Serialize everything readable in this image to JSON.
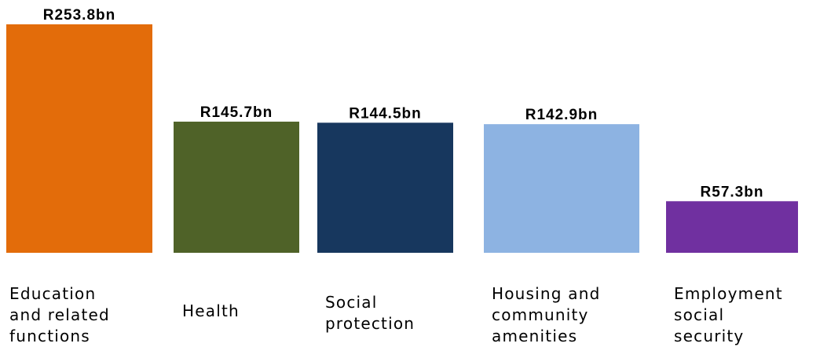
{
  "chart_data": {
    "type": "bar",
    "categories": [
      "Education\nand related\nfunctions",
      "Health",
      "Social\nprotection",
      "Housing and\ncommunity\namenities",
      "Employment\nsocial\nsecurity"
    ],
    "values": [
      253.8,
      145.7,
      144.5,
      142.9,
      57.3
    ],
    "value_labels": [
      "R253.8bn",
      "R145.7bn",
      "R144.5bn",
      "R142.9bn",
      "R57.3bn"
    ],
    "colors": [
      "#E36C0A",
      "#4F6228",
      "#17375E",
      "#8DB3E2",
      "#7030A0"
    ],
    "ylim": [
      0,
      253.8
    ],
    "title": "",
    "xlabel": "",
    "ylabel": "",
    "grid": false,
    "legend": "none"
  }
}
